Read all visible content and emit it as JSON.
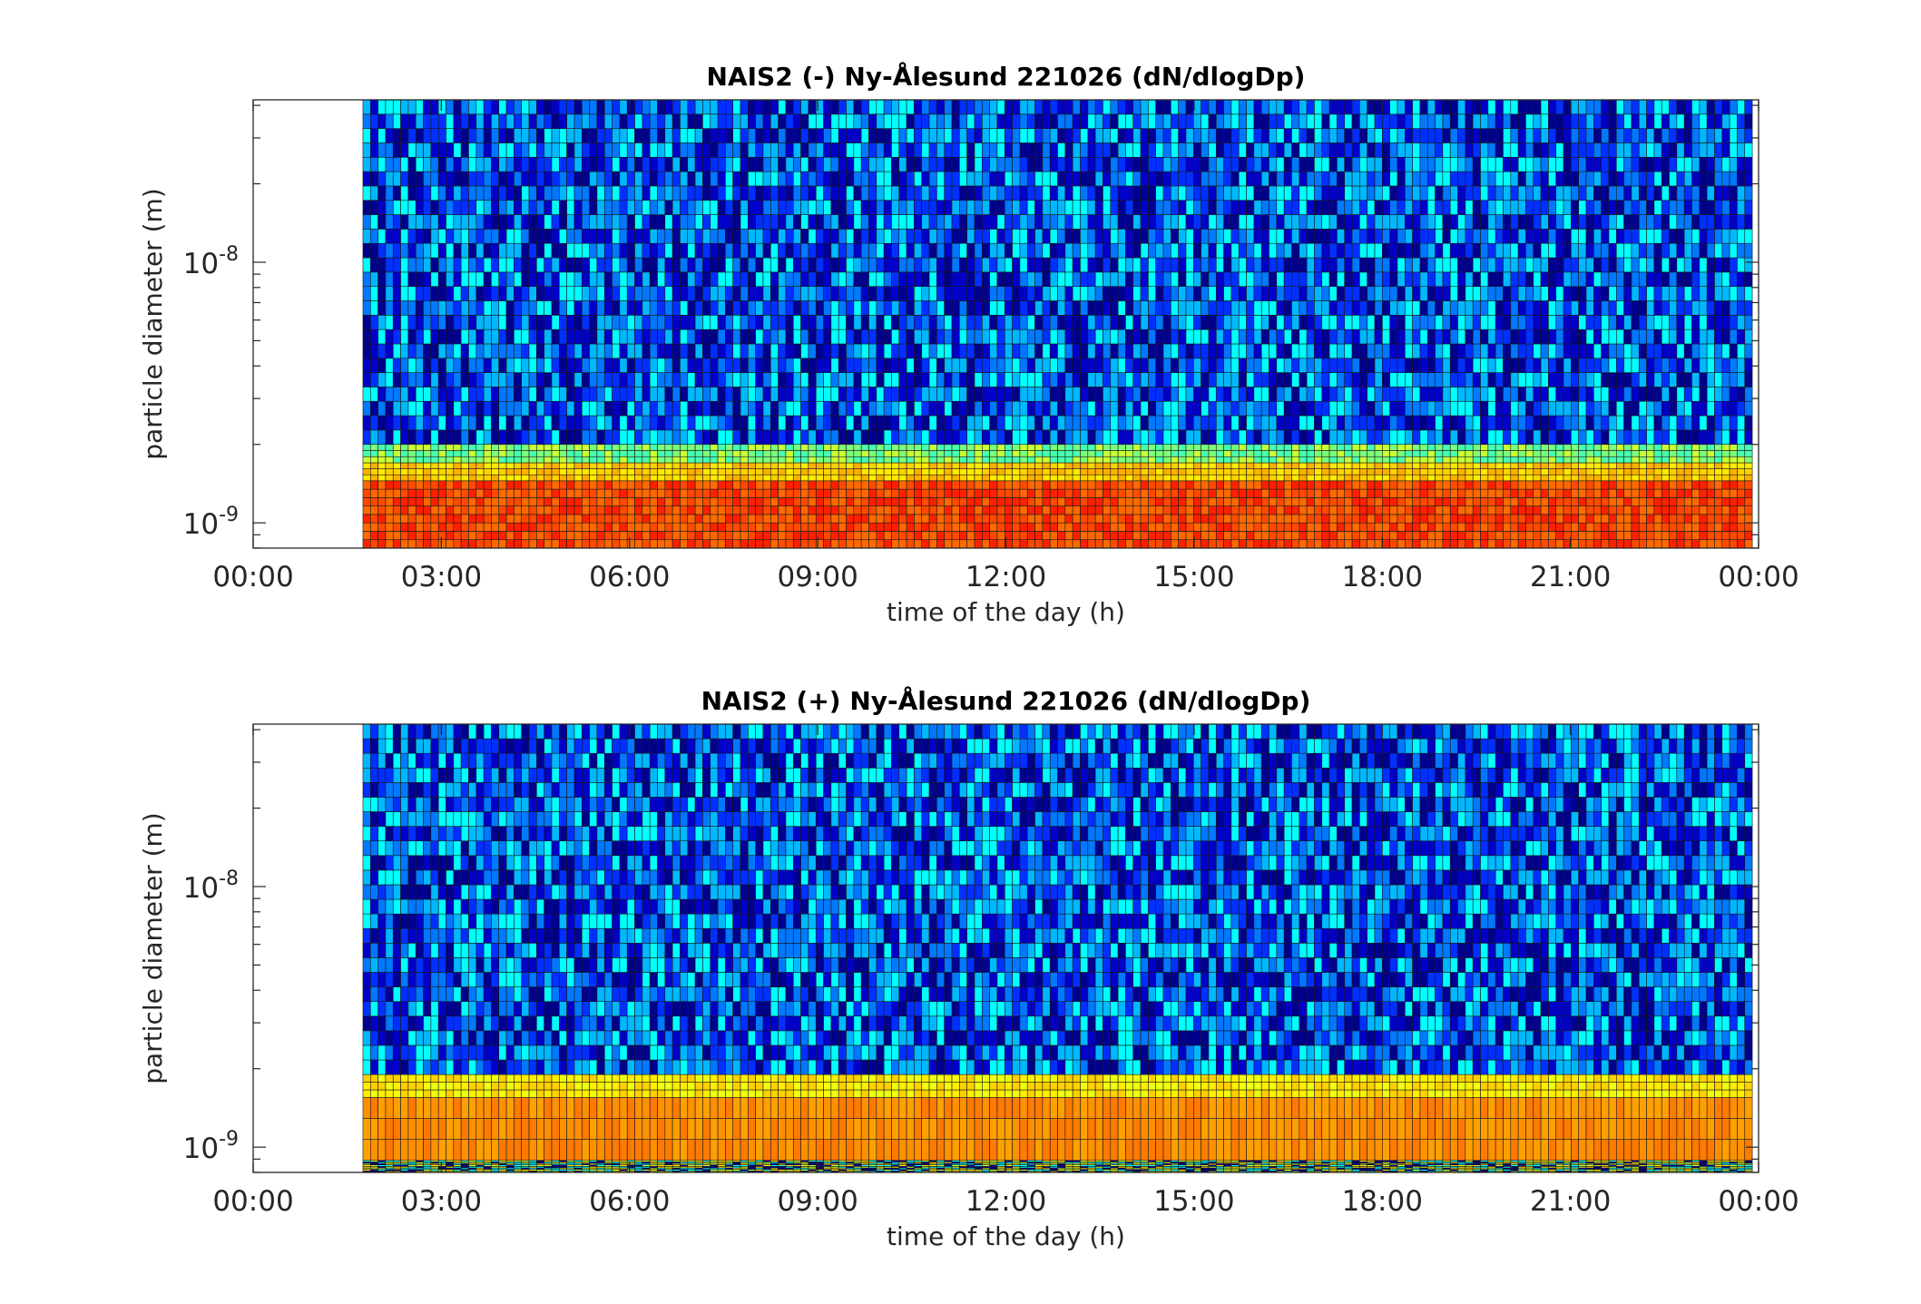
{
  "chart_data": [
    {
      "type": "heatmap",
      "title": "NAIS2 (-) Ny-Ålesund 221026 (dN/dlogDp)",
      "xlabel": "time of the day (h)",
      "ylabel": "particle diameter (m)",
      "x_tick_labels": [
        "00:00",
        "03:00",
        "06:00",
        "09:00",
        "12:00",
        "15:00",
        "18:00",
        "21:00",
        "00:00"
      ],
      "x_tick_hours": [
        0,
        3,
        6,
        9,
        12,
        15,
        18,
        21,
        24
      ],
      "xlim_hours": [
        0,
        24
      ],
      "y_scale": "log",
      "ylim_m": [
        8e-10,
        4.2e-08
      ],
      "y_tick_labels": [
        {
          "base": "10",
          "exp": "-9",
          "value": 1e-09
        },
        {
          "base": "10",
          "exp": "-8",
          "value": 1e-08
        }
      ],
      "data_start_hour": 1.75,
      "data_end_hour": 23.9,
      "colormap": "jet",
      "colormap_colors": [
        "#00008f",
        "#0000ff",
        "#00ffff",
        "#ffff00",
        "#ff0000",
        "#800000"
      ],
      "size_bands": [
        {
          "dp_from_m": 8e-10,
          "dp_to_m": 1.45e-09,
          "level": "high",
          "colors": [
            "#ff2000",
            "#ff4a00",
            "#ff6a00"
          ]
        },
        {
          "dp_from_m": 1.45e-09,
          "dp_to_m": 1.7e-09,
          "level": "medium-high",
          "colors": [
            "#ffb000",
            "#ffd200",
            "#ffea00"
          ]
        },
        {
          "dp_from_m": 1.7e-09,
          "dp_to_m": 2e-09,
          "level": "medium",
          "colors": [
            "#c8ff36",
            "#7cff7a",
            "#48ffaf"
          ]
        },
        {
          "dp_from_m": 2e-09,
          "dp_to_m": 4.2e-08,
          "level": "low",
          "colors": [
            "#00008f",
            "#0000c8",
            "#0030ff",
            "#0078ff",
            "#00b8ff",
            "#00ffff"
          ]
        }
      ]
    },
    {
      "type": "heatmap",
      "title": "NAIS2 (+) Ny-Ålesund 221026 (dN/dlogDp)",
      "xlabel": "time of the day (h)",
      "ylabel": "particle diameter (m)",
      "x_tick_labels": [
        "00:00",
        "03:00",
        "06:00",
        "09:00",
        "12:00",
        "15:00",
        "18:00",
        "21:00",
        "00:00"
      ],
      "x_tick_hours": [
        0,
        3,
        6,
        9,
        12,
        15,
        18,
        21,
        24
      ],
      "xlim_hours": [
        0,
        24
      ],
      "y_scale": "log",
      "ylim_m": [
        8e-10,
        4.2e-08
      ],
      "y_tick_labels": [
        {
          "base": "10",
          "exp": "-9",
          "value": 1e-09
        },
        {
          "base": "10",
          "exp": "-8",
          "value": 1e-08
        }
      ],
      "data_start_hour": 1.75,
      "data_end_hour": 23.9,
      "colormap": "jet",
      "colormap_colors": [
        "#00008f",
        "#0000ff",
        "#00ffff",
        "#ffff00",
        "#ff0000",
        "#800000"
      ],
      "size_bands": [
        {
          "dp_from_m": 8e-10,
          "dp_to_m": 8.9e-10,
          "level": "medium-low",
          "colors": [
            "#c8ff36",
            "#ffe000",
            "#00ffff",
            "#00008f"
          ]
        },
        {
          "dp_from_m": 8.9e-10,
          "dp_to_m": 1.55e-09,
          "level": "high",
          "colors": [
            "#ff7a00",
            "#ff9000",
            "#ffa000"
          ]
        },
        {
          "dp_from_m": 1.55e-09,
          "dp_to_m": 1.9e-09,
          "level": "medium-high",
          "colors": [
            "#ffd000",
            "#ffee00",
            "#f0ff10"
          ]
        },
        {
          "dp_from_m": 1.9e-09,
          "dp_to_m": 4.2e-08,
          "level": "low",
          "colors": [
            "#00008f",
            "#0000c8",
            "#0030ff",
            "#0078ff",
            "#00b8ff",
            "#00ffff"
          ]
        }
      ]
    }
  ]
}
